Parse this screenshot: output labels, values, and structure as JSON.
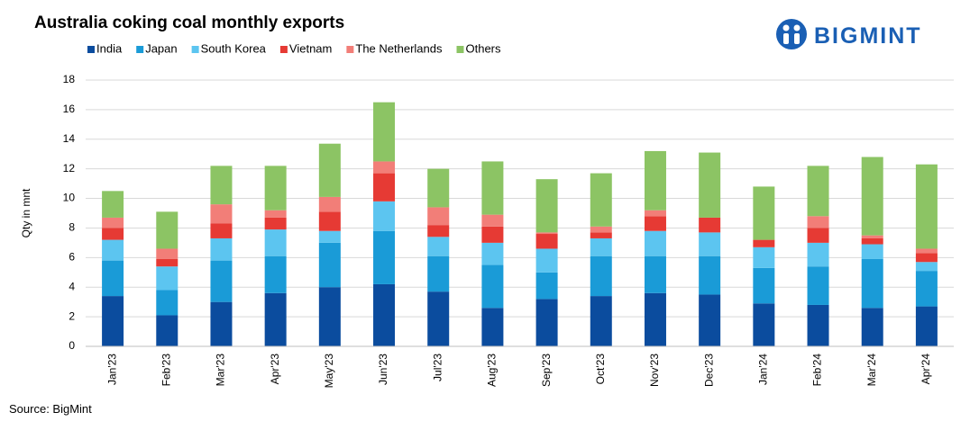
{
  "chart_data": {
    "type": "stacked-bar",
    "title": "Australia coking coal monthly exports",
    "y_label": "Qty in mnt",
    "categories": [
      "Jan'23",
      "Feb'23",
      "Mar'23",
      "Apr'23",
      "May'23",
      "Jun'23",
      "Jul'23",
      "Aug'23",
      "Sep'23",
      "Oct'23",
      "Nov'23",
      "Dec'23",
      "Jan'24",
      "Feb'24",
      "Mar'24",
      "Apr'24"
    ],
    "series": [
      {
        "name": "India",
        "color": "#0b4c9e",
        "values": [
          3.4,
          2.1,
          3.0,
          3.6,
          4.0,
          4.2,
          3.7,
          2.6,
          3.2,
          3.4,
          3.6,
          3.5,
          2.9,
          2.8,
          2.6,
          2.7
        ]
      },
      {
        "name": "Japan",
        "color": "#1a9bd7",
        "values": [
          2.4,
          1.7,
          2.8,
          2.5,
          3.0,
          3.6,
          2.4,
          2.9,
          1.8,
          2.7,
          2.5,
          2.6,
          2.4,
          2.6,
          3.3,
          2.4
        ]
      },
      {
        "name": "South Korea",
        "color": "#5cc5f0",
        "values": [
          1.4,
          1.6,
          1.5,
          1.8,
          0.8,
          2.0,
          1.3,
          1.5,
          1.6,
          1.2,
          1.7,
          1.6,
          1.4,
          1.6,
          1.0,
          0.6
        ]
      },
      {
        "name": "Vietnam",
        "color": "#e63a34",
        "values": [
          0.8,
          0.5,
          1.0,
          0.8,
          1.3,
          1.9,
          0.8,
          1.1,
          1.0,
          0.4,
          1.0,
          1.0,
          0.5,
          1.0,
          0.4,
          0.6
        ]
      },
      {
        "name": "The Netherlands",
        "color": "#f27e78",
        "values": [
          0.7,
          0.7,
          1.3,
          0.5,
          1.0,
          0.8,
          1.2,
          0.8,
          0.1,
          0.4,
          0.4,
          0,
          0,
          0.8,
          0.2,
          0.3
        ]
      },
      {
        "name": "Others",
        "color": "#8cc464",
        "values": [
          1.8,
          2.5,
          2.6,
          3.0,
          3.6,
          4.0,
          2.6,
          3.6,
          3.6,
          3.6,
          4.0,
          4.4,
          3.6,
          3.4,
          5.3,
          5.7
        ]
      }
    ],
    "ylim": [
      0,
      18
    ],
    "yticks": [
      0,
      2,
      4,
      6,
      8,
      10,
      12,
      14,
      16,
      18
    ],
    "grid": true
  },
  "source": "Source: BigMint",
  "logo": "BIGMINT"
}
